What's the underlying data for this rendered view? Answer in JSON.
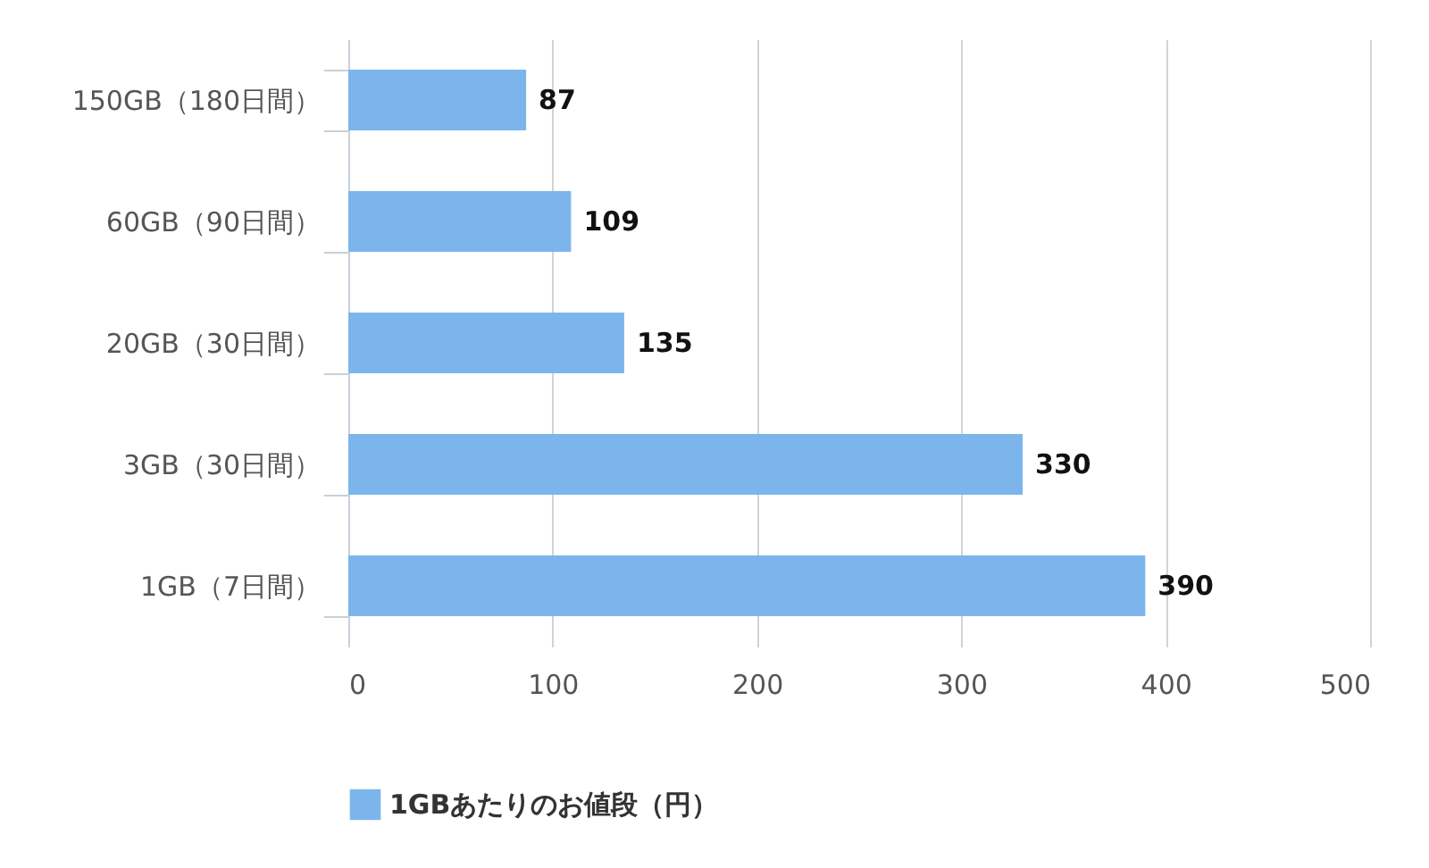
{
  "chart_data": {
    "type": "bar",
    "orientation": "horizontal",
    "categories": [
      "150GB（180日間）",
      "60GB（90日間）",
      "20GB（30日間）",
      "3GB（30日間）",
      "1GB（7日間）"
    ],
    "series": [
      {
        "name": "1GBあたりのお値段（円）",
        "color": "#7cb5ec",
        "values": [
          87,
          109,
          135,
          330,
          390
        ]
      }
    ],
    "xlim": [
      0,
      500
    ],
    "xticks": [
      0,
      100,
      200,
      300,
      400,
      500
    ],
    "grid": "x",
    "legend": "bottom",
    "data_labels": true
  }
}
